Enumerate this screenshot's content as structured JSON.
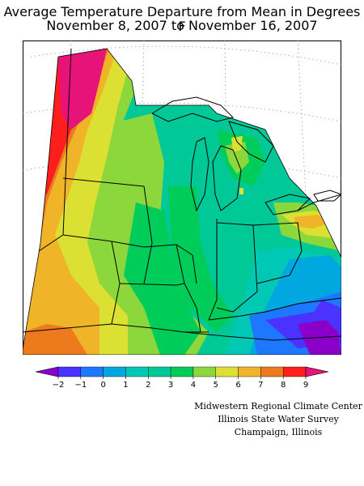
{
  "title": {
    "line1": "Average Temperature Departure from Mean in Degrees F",
    "line2": "November 8, 2007 to November 16, 2007"
  },
  "legend": {
    "labels": [
      "−2",
      "−1",
      "0",
      "1",
      "2",
      "3",
      "4",
      "5",
      "6",
      "7",
      "8",
      "9"
    ],
    "colors": [
      "#8a00c8",
      "#4a32ff",
      "#1e78ff",
      "#00a8e0",
      "#00c8b4",
      "#00c896",
      "#00cc5a",
      "#8cd83c",
      "#dce032",
      "#f0b428",
      "#ee7a1e",
      "#ff1e1e",
      "#e61478"
    ]
  },
  "credits": {
    "line1": "Midwestern Regional Climate Center",
    "line2": "Illinois State Water Survey",
    "line3": "Champaign, Illinois"
  }
}
